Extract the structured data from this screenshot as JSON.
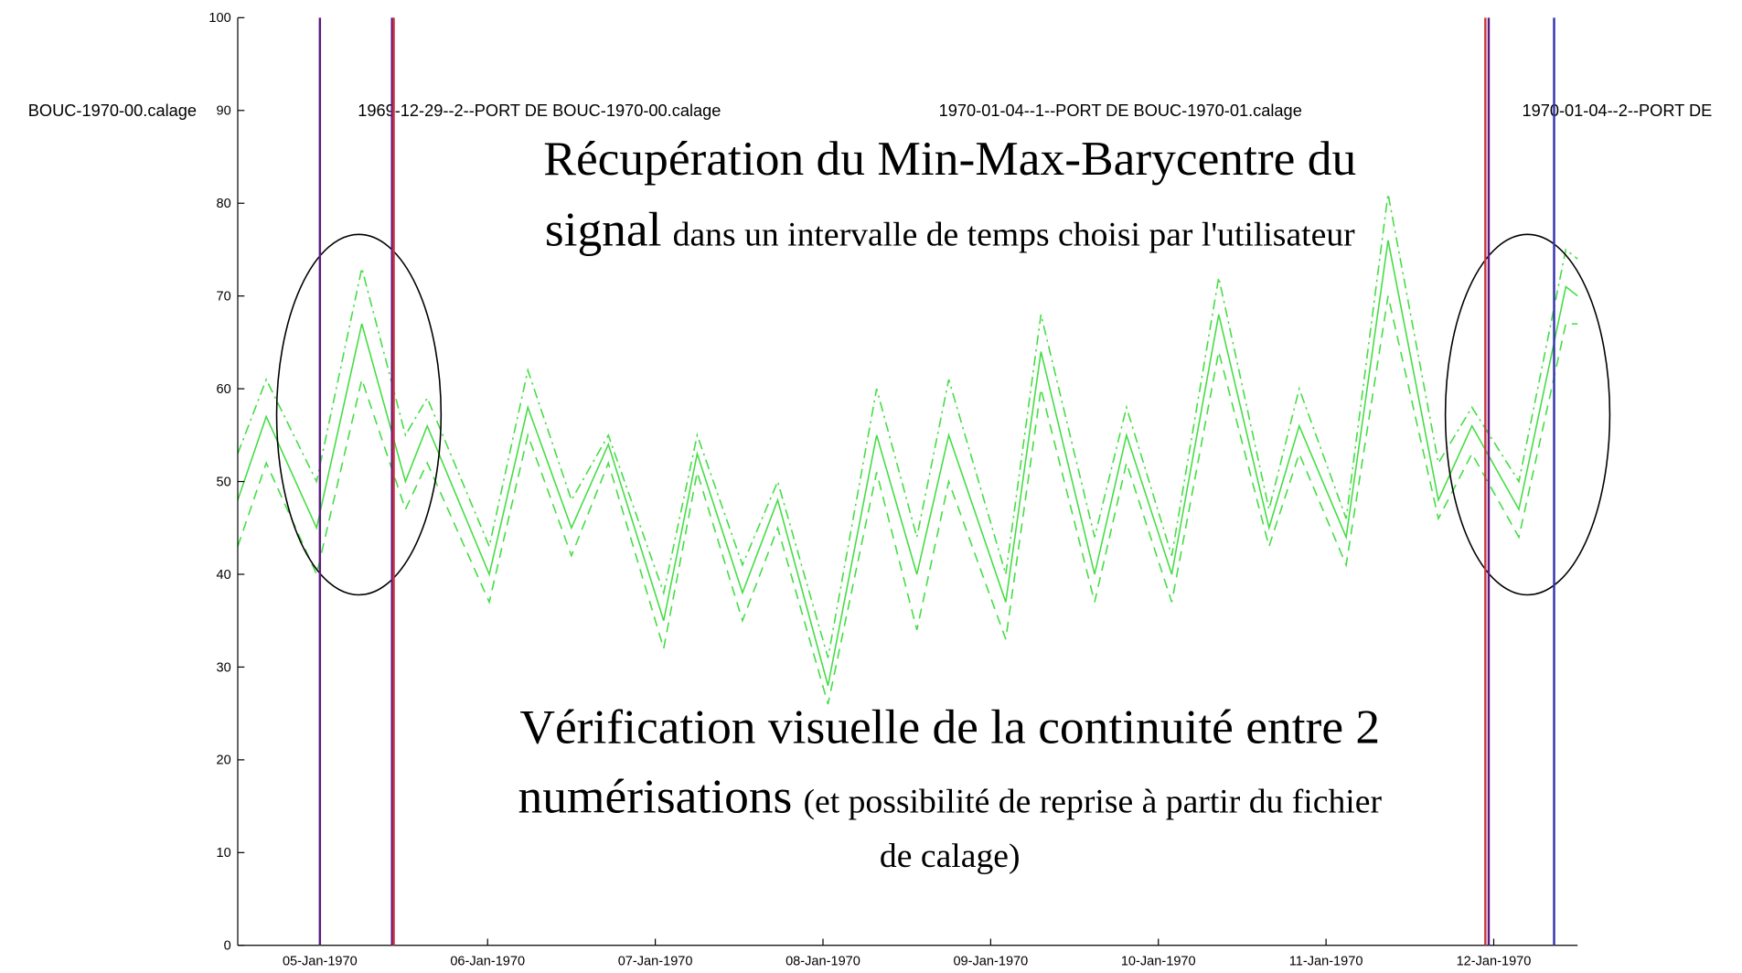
{
  "chart_data": {
    "type": "line",
    "x": [
      -0.49,
      -0.32,
      -0.02,
      0.25,
      0.51,
      0.64,
      1.01,
      1.24,
      1.5,
      1.72,
      2.05,
      2.25,
      2.52,
      2.73,
      3.03,
      3.32,
      3.56,
      3.75,
      4.09,
      4.3,
      4.62,
      4.81,
      5.08,
      5.36,
      5.66,
      5.84,
      6.12,
      6.37,
      6.67,
      6.87,
      7.15,
      7.43,
      7.5
    ],
    "series": [
      {
        "color": "#44dd44",
        "style": "dashed",
        "values": [
          43,
          52,
          40,
          61,
          47,
          52,
          37,
          55,
          42,
          52,
          32,
          51,
          35,
          45,
          26,
          51,
          34,
          50,
          33,
          60,
          37,
          52,
          37,
          64,
          43,
          53,
          41,
          70,
          46,
          53,
          44,
          67,
          67
        ]
      },
      {
        "color": "#44dd44",
        "style": "solid",
        "values": [
          48,
          57,
          45,
          67,
          50,
          56,
          40,
          58,
          45,
          54,
          35,
          53,
          38,
          48,
          28,
          55,
          40,
          55,
          37,
          64,
          40,
          55,
          40,
          68,
          45,
          56,
          44,
          76,
          48,
          56,
          47,
          71,
          70
        ]
      },
      {
        "color": "#44dd44",
        "style": "dashdot",
        "values": [
          53,
          61,
          50,
          73,
          55,
          59,
          43,
          62,
          48,
          55,
          38,
          55,
          41,
          50,
          31,
          60,
          44,
          61,
          40,
          68,
          44,
          58,
          42,
          72,
          47,
          60,
          46,
          81,
          52,
          58,
          50,
          75,
          74
        ]
      }
    ],
    "xlim": [
      -0.49,
      7.5
    ],
    "xticks": [
      {
        "value": 0,
        "label": "05-Jan-1970"
      },
      {
        "value": 1,
        "label": "06-Jan-1970"
      },
      {
        "value": 2,
        "label": "07-Jan-1970"
      },
      {
        "value": 3,
        "label": "08-Jan-1970"
      },
      {
        "value": 4,
        "label": "09-Jan-1970"
      },
      {
        "value": 5,
        "label": "10-Jan-1970"
      },
      {
        "value": 6,
        "label": "11-Jan-1970"
      },
      {
        "value": 7,
        "label": "12-Jan-1970"
      }
    ],
    "ylim": [
      0,
      100
    ],
    "yticks": [
      0,
      10,
      20,
      30,
      40,
      50,
      60,
      70,
      80,
      90,
      100
    ],
    "vlines": [
      {
        "x": 0,
        "color": "#5b1a80"
      },
      {
        "x": 0.43,
        "color": "#5b1a80"
      },
      {
        "x": 0.44,
        "color": "#cc3344"
      },
      {
        "x": 6.95,
        "color": "#cc3344"
      },
      {
        "x": 6.97,
        "color": "#5b1a80"
      },
      {
        "x": 7.36,
        "color": "#3333aa"
      }
    ],
    "file_labels": [
      "BOUC-1970-00.calage",
      "1969-12-29--2--PORT DE BOUC-1970-00.calage",
      "1970-01-04--1--PORT DE BOUC-1970-01.calage",
      "1970-01-04--2--PORT DE"
    ],
    "notes": [
      "Récupération du Min-Max-Barycentre du",
      "signal",
      "dans un intervalle de temps choisi par l'utilisateur",
      "Vérification visuelle de la continuité entre 2",
      "numérisations",
      "(et possibilité de reprise à partir du fichier",
      "de calage)"
    ]
  }
}
